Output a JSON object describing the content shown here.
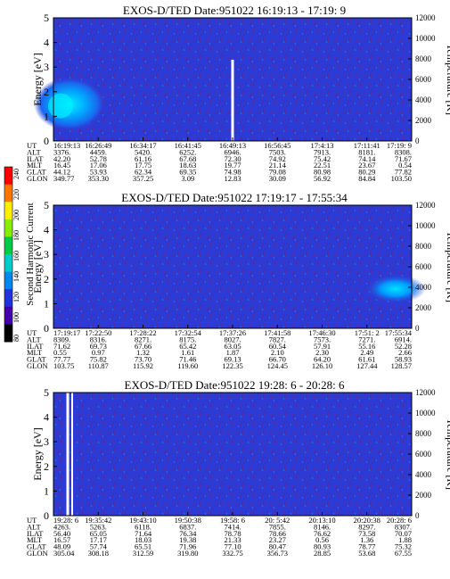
{
  "colorbar": {
    "label": "Second Harmonic Current",
    "ticks": [
      "240",
      "220",
      "200",
      "180",
      "160",
      "140",
      "120",
      "100",
      "80"
    ],
    "colors": [
      "#ff0000",
      "#ff7700",
      "#ffee00",
      "#88ee00",
      "#00cc44",
      "#00cccc",
      "#0088ee",
      "#2233dd",
      "#4400aa",
      "#000000"
    ]
  },
  "chart_data": [
    {
      "type": "heatmap",
      "title": "EXOS-D/TED   Date:951022  16:19:13 - 17:19: 9",
      "ylabel": "Energy [eV]",
      "y2label": "Temperature [K]",
      "ylim": [
        0,
        5
      ],
      "y2lim": [
        0,
        12000
      ],
      "yticks": [
        "0",
        "1",
        "2",
        "3",
        "4",
        "5"
      ],
      "y2ticks": [
        "0",
        "2000",
        "4000",
        "6000",
        "8000",
        "10000",
        "12000"
      ],
      "table": {
        "labels": [
          "UT",
          "ALT",
          "ILAT",
          "MLT",
          "GLAT",
          "GLON"
        ],
        "columns": [
          [
            "16:19:13",
            "3376.",
            "42.20",
            "16.45",
            "44.12",
            "349.77"
          ],
          [
            "16:26:49",
            "4459.",
            "52.78",
            "17.06",
            "53.93",
            "353.30"
          ],
          [
            "16:34:17",
            "5420.",
            "61.16",
            "17.75",
            "62.34",
            "357.25"
          ],
          [
            "16:41:45",
            "6252.",
            "67.68",
            "18.63",
            "69.35",
            "3.09"
          ],
          [
            "16:49:13",
            "6946.",
            "72.30",
            "19.77",
            "74.98",
            "12.83"
          ],
          [
            "16:56:45",
            "7503.",
            "74.92",
            "21.14",
            "79.08",
            "30.09"
          ],
          [
            "17:4:13",
            "7913.",
            "75.42",
            "22.51",
            "80.98",
            "56.92"
          ],
          [
            "17:11:41",
            "8181.",
            "74.14",
            "23.67",
            "80.29",
            "84.84"
          ],
          [
            "17:19: 9",
            "8308.",
            "71.67",
            "0.54",
            "77.82",
            "103.50"
          ]
        ]
      },
      "features": [
        {
          "kind": "hot-patch",
          "ut": "16:19:13",
          "energy_ev": 1.5,
          "color": "#00eeff"
        },
        {
          "kind": "data-gap",
          "ut": "16:49:13",
          "energy_ev": [
            0,
            3.3
          ]
        }
      ]
    },
    {
      "type": "heatmap",
      "title": "EXOS-D/TED   Date:951022  17:19:17 - 17:55:34",
      "ylabel": "Energy [eV]",
      "y2label": "Temperature [K]",
      "ylim": [
        0,
        5
      ],
      "y2lim": [
        0,
        12000
      ],
      "yticks": [
        "0",
        "1",
        "2",
        "3",
        "4",
        "5"
      ],
      "y2ticks": [
        "0",
        "2000",
        "4000",
        "6000",
        "8000",
        "10000",
        "12000"
      ],
      "table": {
        "labels": [
          "UT",
          "ALT",
          "ILAT",
          "MLT",
          "GLAT",
          "GLON"
        ],
        "columns": [
          [
            "17:19:17",
            "8309.",
            "71.62",
            "0.55",
            "77.77",
            "103.75"
          ],
          [
            "17:22:50",
            "8316.",
            "69.73",
            "0.97",
            "75.82",
            "110.87"
          ],
          [
            "17:28:22",
            "8271.",
            "67.66",
            "1.32",
            "73.70",
            "115.92"
          ],
          [
            "17:32:54",
            "8175.",
            "65.42",
            "1.61",
            "71.46",
            "119.60"
          ],
          [
            "17:37:26",
            "8027.",
            "63.05",
            "1.87",
            "69.13",
            "122.35"
          ],
          [
            "17:41:58",
            "7827.",
            "60.54",
            "2.10",
            "66.70",
            "124.45"
          ],
          [
            "17:46:30",
            "7573.",
            "57.91",
            "2.30",
            "64.20",
            "126.10"
          ],
          [
            "17:51: 2",
            "7271.",
            "55.16",
            "2.49",
            "61.61",
            "127.44"
          ],
          [
            "17:55:34",
            "6914.",
            "52.28",
            "2.66",
            "58.93",
            "128.57"
          ]
        ]
      },
      "features": [
        {
          "kind": "hot-patch",
          "ut": "17:55:34",
          "energy_ev": 1.6,
          "color": "#00eeff"
        }
      ]
    },
    {
      "type": "heatmap",
      "title": "EXOS-D/TED   Date:951022  19:28: 6 - 20:28: 6",
      "ylabel": "Energy [eV]",
      "y2label": "Temperature [K]",
      "ylim": [
        0,
        5
      ],
      "y2lim": [
        0,
        12000
      ],
      "yticks": [
        "0",
        "1",
        "2",
        "3",
        "4",
        "5"
      ],
      "y2ticks": [
        "0",
        "2000",
        "4000",
        "6000",
        "8000",
        "10000",
        "12000"
      ],
      "table": {
        "labels": [
          "UT",
          "ALT",
          "ILAT",
          "MLT",
          "GLAT",
          "GLON"
        ],
        "columns": [
          [
            "19:28: 6",
            "4263.",
            "56.40",
            "16.57",
            "48.09",
            "305.04"
          ],
          [
            "19:35:42",
            "5263.",
            "65.05",
            "17.17",
            "57.74",
            "308.18"
          ],
          [
            "19:43:10",
            "6118.",
            "71.64",
            "18.03",
            "65.51",
            "312.59"
          ],
          [
            "19:50:38",
            "6837.",
            "76.34",
            "19.38",
            "71.96",
            "319.80"
          ],
          [
            "19:58: 6",
            "7414.",
            "78.78",
            "21.33",
            "77.10",
            "332.75"
          ],
          [
            "20: 5:42",
            "7855.",
            "78.66",
            "23.27",
            "80.47",
            "356.73"
          ],
          [
            "20:13:10",
            "8146.",
            "76.62",
            "0.56",
            "80.93",
            "28.85"
          ],
          [
            "20:20:38",
            "8297.",
            "73.58",
            "1.36",
            "78.77",
            "53.68"
          ],
          [
            "20:28: 6",
            "8307.",
            "70.07",
            "1.88",
            "75.32",
            "67.55"
          ]
        ]
      },
      "features": [
        {
          "kind": "data-gap",
          "ut": "19:28: 6",
          "energy_ev": [
            0,
            5
          ]
        }
      ]
    }
  ]
}
